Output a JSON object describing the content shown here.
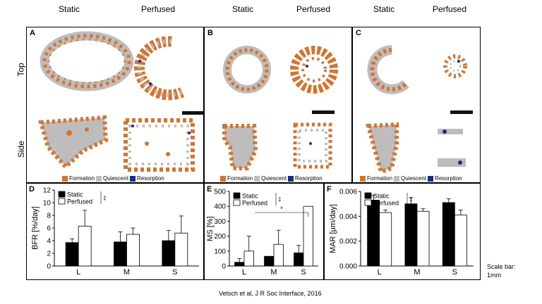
{
  "column_headers": [
    "Static",
    "Perfused",
    "Static",
    "Perfused",
    "Static",
    "Perfused"
  ],
  "row_labels": {
    "top": "Top",
    "side": "Side"
  },
  "image_panels": [
    {
      "letter": "A"
    },
    {
      "letter": "B"
    },
    {
      "letter": "C"
    }
  ],
  "legend": {
    "items": [
      {
        "label": "Formation",
        "color": "#d9722b"
      },
      {
        "label": "Quiescent",
        "color": "#bdbdbd"
      },
      {
        "label": "Resorption",
        "color": "#1a2a8c"
      }
    ]
  },
  "scale_bar_text": {
    "line1": "Scale bar:",
    "line2": "1mm"
  },
  "citation": "Vetsch et al, J R Soc Interface, 2016",
  "chart_data": [
    {
      "letter": "D",
      "type": "bar",
      "categories": [
        "L",
        "M",
        "S"
      ],
      "ylabel": "BFR [%/day]",
      "ylim": [
        0,
        12
      ],
      "yticks": [
        0,
        2,
        4,
        6,
        8,
        10,
        12
      ],
      "ytick_labels": [
        "0",
        "2",
        "4",
        "6",
        "8",
        "10",
        "12"
      ],
      "legend_sig": "‡",
      "series": [
        {
          "name": "Static",
          "color": "#000000",
          "values": [
            3.7,
            3.8,
            4.0
          ],
          "errors": [
            0.6,
            1.6,
            1.6
          ]
        },
        {
          "name": "Perfused",
          "color": "#ffffff",
          "values": [
            6.3,
            5.0,
            5.2
          ],
          "errors": [
            2.5,
            1.0,
            2.7
          ]
        }
      ],
      "annotations": []
    },
    {
      "letter": "E",
      "type": "bar",
      "categories": [
        "L",
        "M",
        "S"
      ],
      "ylabel": "MS [%]",
      "ylim": [
        0,
        500
      ],
      "yticks": [
        0,
        100,
        200,
        300,
        400,
        500
      ],
      "ytick_labels": [
        "0",
        "100",
        "200",
        "300",
        "400",
        "500"
      ],
      "legend_sig": "‡",
      "series": [
        {
          "name": "Static",
          "color": "#000000",
          "values": [
            25,
            65,
            88
          ],
          "errors": [
            25,
            0,
            50
          ]
        },
        {
          "name": "Perfused",
          "color": "#ffffff",
          "values": [
            100,
            145,
            400
          ],
          "errors": [
            100,
            95,
            0
          ]
        }
      ],
      "annotations": [
        {
          "text": "*",
          "from": "M",
          "to": "S"
        }
      ]
    },
    {
      "letter": "F",
      "type": "bar",
      "categories": [
        "L",
        "M",
        "S"
      ],
      "ylabel": "MAR [µm/day]",
      "ylim": [
        0,
        0.006
      ],
      "yticks": [
        0,
        0.002,
        0.004,
        0.006
      ],
      "ytick_labels": [
        "0.000",
        "0.002",
        "0.004",
        "0.006"
      ],
      "legend_sig": "‡",
      "series": [
        {
          "name": "Static",
          "color": "#000000",
          "values": [
            0.0053,
            0.005,
            0.0051
          ],
          "errors": [
            0.0004,
            0.0005,
            0.0003
          ]
        },
        {
          "name": "Perfused",
          "color": "#ffffff",
          "values": [
            0.0043,
            0.0044,
            0.0041
          ],
          "errors": [
            0.0002,
            0.0002,
            0.0004
          ]
        }
      ],
      "annotations": []
    }
  ]
}
